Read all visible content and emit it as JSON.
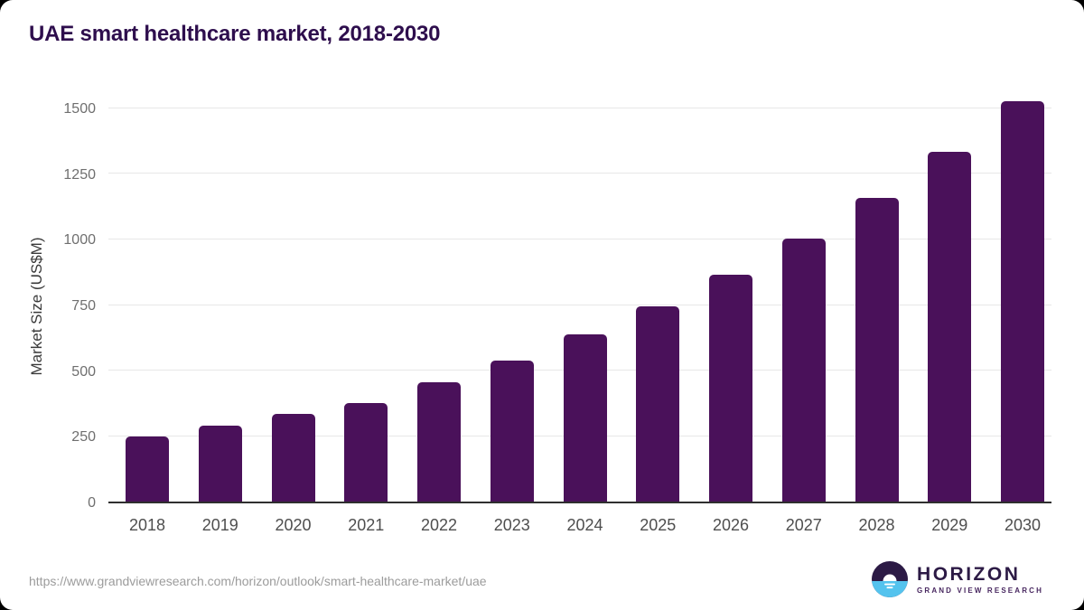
{
  "page": {
    "card_background": "#FFFFFF",
    "outer_background": "#000000"
  },
  "chart_data": {
    "type": "bar",
    "title": "UAE smart healthcare market, 2018-2030",
    "xlabel": "",
    "ylabel": "Market Size (US$M)",
    "categories": [
      "2018",
      "2019",
      "2020",
      "2021",
      "2022",
      "2023",
      "2024",
      "2025",
      "2026",
      "2027",
      "2028",
      "2029",
      "2030"
    ],
    "values": [
      250,
      292,
      335,
      376,
      455,
      540,
      640,
      746,
      868,
      1005,
      1161,
      1339,
      1530
    ],
    "ylim": [
      0,
      1500
    ],
    "yticks": [
      0,
      250,
      500,
      750,
      1000,
      1250,
      1500
    ],
    "grid": true,
    "legend_position": "none",
    "bar_color": "#4A115A",
    "title_color": "#2E0E4D",
    "axis_color": "#2F2F2F",
    "gridline_color": "#E7E7E7",
    "tick_label_color": "#6F6F6F",
    "category_label_color": "#4E4E4E"
  },
  "footer": {
    "source_url": "https://www.grandviewresearch.com/horizon/outlook/smart-healthcare-market/uae"
  },
  "logo": {
    "icon": "horizon-sun-circle-icon",
    "name": "HORIZON",
    "subtitle": "GRAND VIEW RESEARCH",
    "dark_color": "#2C1A45",
    "blue_color": "#54C3EE"
  }
}
